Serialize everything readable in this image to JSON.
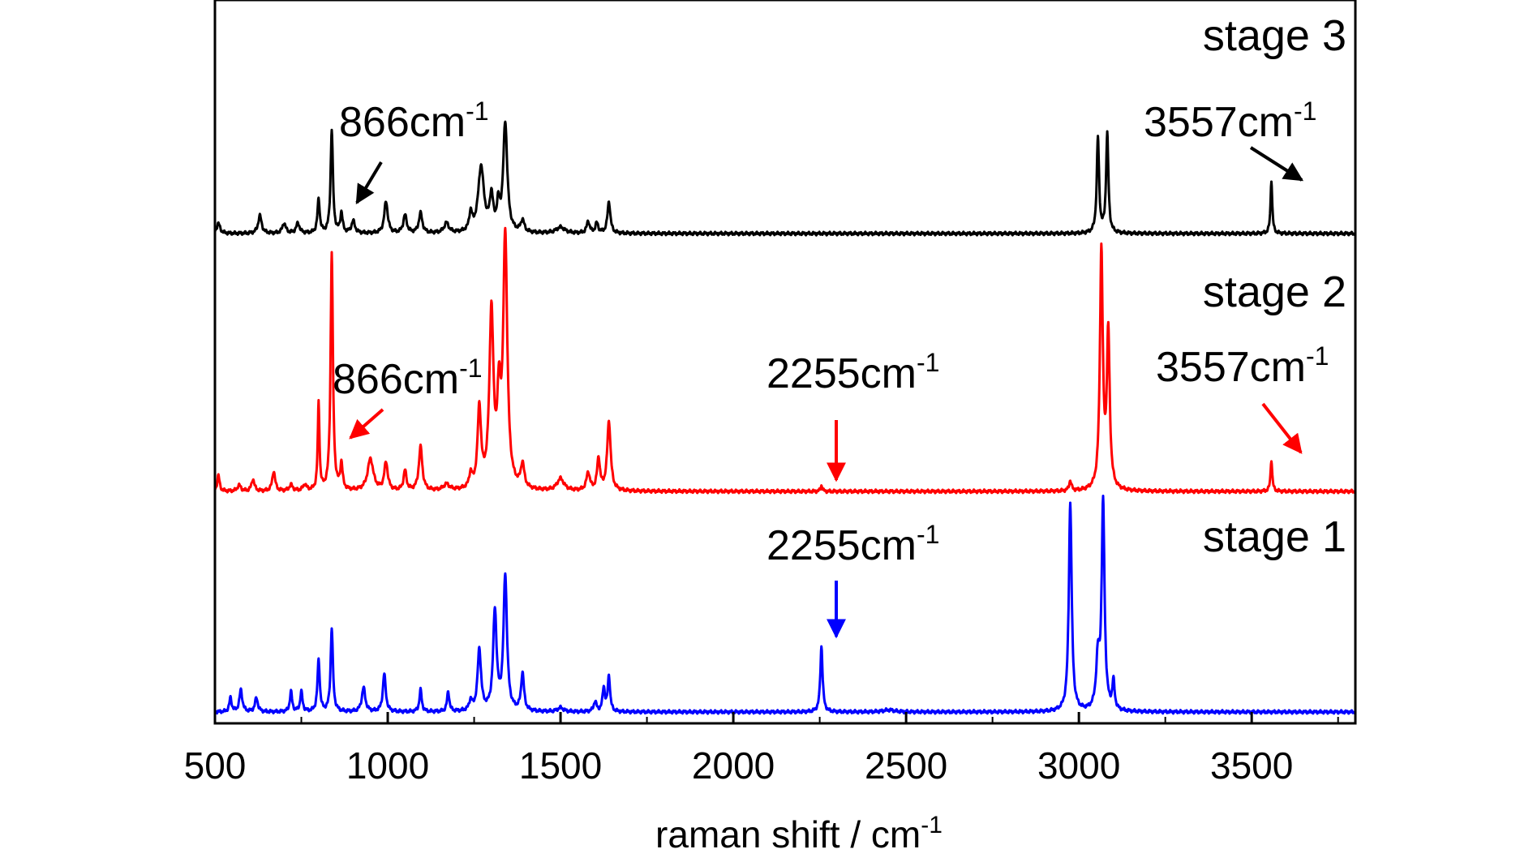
{
  "chart_data": {
    "type": "line",
    "title": "",
    "xlabel": "raman shift / cm",
    "xlabel_sup": "-1",
    "ylabel": "",
    "xlim": [
      500,
      3800
    ],
    "xticks": [
      500,
      1000,
      1500,
      2000,
      2500,
      3000,
      3500
    ],
    "x_tick_labels": [
      "500",
      "1000",
      "1500",
      "2000",
      "2500",
      "3000",
      "3500"
    ],
    "grid": false,
    "legend": "none",
    "y_axis_ticks": "none",
    "series": [
      {
        "name": "stage 3",
        "color": "#000000",
        "baseline": 0,
        "peaks": [
          [
            510,
            5,
            6
          ],
          [
            630,
            9,
            6
          ],
          [
            700,
            5,
            6
          ],
          [
            740,
            5,
            6
          ],
          [
            800,
            17,
            4
          ],
          [
            838,
            52,
            4
          ],
          [
            866,
            10,
            4
          ],
          [
            900,
            6,
            6
          ],
          [
            995,
            16,
            6
          ],
          [
            1050,
            9,
            6
          ],
          [
            1095,
            10,
            6
          ],
          [
            1170,
            5,
            8
          ],
          [
            1240,
            9,
            5
          ],
          [
            1270,
            33,
            10
          ],
          [
            1300,
            17,
            6
          ],
          [
            1320,
            12,
            5
          ],
          [
            1340,
            55,
            7
          ],
          [
            1390,
            6,
            6
          ],
          [
            1500,
            3,
            15
          ],
          [
            1580,
            6,
            5
          ],
          [
            1605,
            5,
            5
          ],
          [
            1640,
            16,
            5
          ],
          [
            3055,
            48,
            4
          ],
          [
            3082,
            50,
            4
          ],
          [
            3557,
            27,
            3
          ]
        ]
      },
      {
        "name": "stage 2",
        "color": "#ff0000",
        "baseline": 0,
        "peaks": [
          [
            510,
            8,
            4
          ],
          [
            570,
            3,
            6
          ],
          [
            610,
            6,
            5
          ],
          [
            670,
            10,
            5
          ],
          [
            720,
            3,
            6
          ],
          [
            760,
            3,
            6
          ],
          [
            800,
            44,
            3
          ],
          [
            838,
            120,
            4
          ],
          [
            866,
            13,
            4
          ],
          [
            950,
            16,
            10
          ],
          [
            995,
            14,
            6
          ],
          [
            1050,
            10,
            5
          ],
          [
            1095,
            22,
            6
          ],
          [
            1170,
            3,
            10
          ],
          [
            1240,
            7,
            5
          ],
          [
            1265,
            40,
            6
          ],
          [
            1300,
            88,
            7
          ],
          [
            1322,
            40,
            6
          ],
          [
            1340,
            126,
            7
          ],
          [
            1390,
            12,
            6
          ],
          [
            1500,
            6,
            12
          ],
          [
            1580,
            9,
            6
          ],
          [
            1610,
            16,
            5
          ],
          [
            1640,
            35,
            6
          ],
          [
            2255,
            3,
            3
          ],
          [
            2975,
            5,
            4
          ],
          [
            3065,
            120,
            5
          ],
          [
            3085,
            78,
            5
          ],
          [
            3557,
            16,
            3
          ]
        ]
      },
      {
        "name": "stage 1",
        "color": "#0000ff",
        "baseline": 0,
        "peaks": [
          [
            545,
            7,
            4
          ],
          [
            575,
            11,
            5
          ],
          [
            620,
            7,
            5
          ],
          [
            720,
            10,
            4
          ],
          [
            750,
            10,
            4
          ],
          [
            800,
            26,
            4
          ],
          [
            838,
            42,
            4
          ],
          [
            930,
            12,
            6
          ],
          [
            990,
            19,
            5
          ],
          [
            1095,
            11,
            4
          ],
          [
            1175,
            10,
            4
          ],
          [
            1240,
            5,
            5
          ],
          [
            1265,
            31,
            6
          ],
          [
            1310,
            50,
            6
          ],
          [
            1340,
            68,
            6
          ],
          [
            1390,
            19,
            5
          ],
          [
            1500,
            2,
            10
          ],
          [
            1600,
            5,
            5
          ],
          [
            1625,
            12,
            4
          ],
          [
            1640,
            18,
            4
          ],
          [
            2255,
            33,
            4
          ],
          [
            2450,
            1,
            20
          ],
          [
            2975,
            105,
            5
          ],
          [
            3055,
            25,
            6
          ],
          [
            3070,
            104,
            5
          ],
          [
            3100,
            14,
            4
          ]
        ]
      }
    ],
    "annotations": [
      {
        "series": "stage 3",
        "text": "866cm",
        "sup": "-1",
        "x": 866
      },
      {
        "series": "stage 3",
        "text": "3557cm",
        "sup": "-1",
        "x": 3557
      },
      {
        "series": "stage 2",
        "text": "866cm",
        "sup": "-1",
        "x": 866
      },
      {
        "series": "stage 2",
        "text": "2255cm",
        "sup": "-1",
        "x": 2255
      },
      {
        "series": "stage 2",
        "text": "3557cm",
        "sup": "-1",
        "x": 3557
      },
      {
        "series": "stage 1",
        "text": "2255cm",
        "sup": "-1",
        "x": 2255
      }
    ]
  }
}
